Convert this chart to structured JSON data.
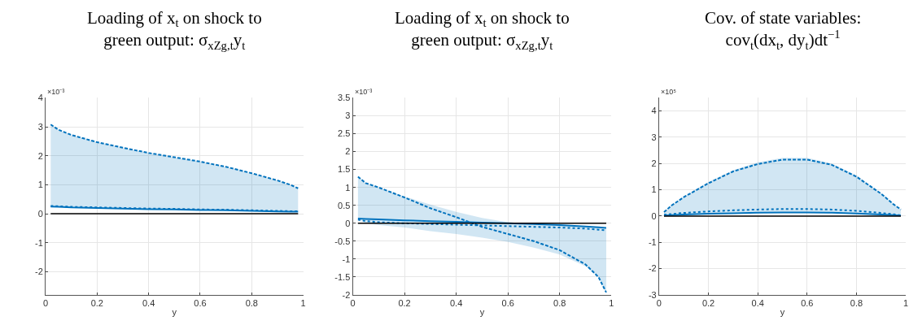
{
  "chart_data": [
    {
      "type": "line",
      "title": "Loading of x$_{t}$ on shock to green output: σ$_{xZg,t}$y$_{t}$",
      "xlabel": "y",
      "annotations": [
        "×10⁻³"
      ],
      "x": [
        0.02,
        0.05,
        0.1,
        0.2,
        0.3,
        0.4,
        0.5,
        0.6,
        0.7,
        0.8,
        0.9,
        0.95,
        0.98
      ],
      "series": [
        {
          "color": "#0072bd",
          "line_style": "dashed",
          "values": [
            3.08,
            2.9,
            2.72,
            2.47,
            2.28,
            2.1,
            1.95,
            1.8,
            1.62,
            1.4,
            1.15,
            1.0,
            0.88
          ],
          "lower": [
            0.25,
            0.24,
            0.22,
            0.2,
            0.18,
            0.16,
            0.15,
            0.13,
            0.12,
            0.1,
            0.08,
            0.07,
            0.07
          ],
          "upper": [
            3.08,
            2.9,
            2.72,
            2.47,
            2.28,
            2.1,
            1.95,
            1.8,
            1.62,
            1.4,
            1.15,
            1.0,
            0.88
          ]
        },
        {
          "color": "#0072bd",
          "line_style": "solid",
          "values": [
            0.25,
            0.24,
            0.22,
            0.2,
            0.18,
            0.16,
            0.15,
            0.13,
            0.12,
            0.1,
            0.08,
            0.07,
            0.07
          ]
        },
        {
          "color": "#0072bd",
          "line_style": "dotted",
          "values": [
            0.27,
            0.26,
            0.24,
            0.22,
            0.2,
            0.18,
            0.17,
            0.15,
            0.14,
            0.12,
            0.1,
            0.09,
            0.09
          ]
        }
      ],
      "xlim": [
        0,
        1
      ],
      "xticks": [
        0,
        0.2,
        0.4,
        0.6,
        0.8,
        1
      ],
      "ylim": [
        -2.8,
        4
      ],
      "yticks": [
        -2,
        -1,
        0,
        1,
        2,
        3,
        4
      ],
      "grid": true,
      "ref_lines": [
        {
          "axis": "y",
          "value": 0,
          "color": "#000000"
        }
      ]
    },
    {
      "type": "line",
      "title": "Loading of x$_{t}$ on shock to green output: σ$_{xZg,t}$y$_{t}$",
      "xlabel": "y",
      "annotations": [
        "×10⁻³"
      ],
      "x": [
        0.02,
        0.05,
        0.1,
        0.2,
        0.3,
        0.4,
        0.5,
        0.6,
        0.7,
        0.8,
        0.9,
        0.95,
        0.98
      ],
      "series": [
        {
          "color": "#0072bd",
          "line_style": "dashed",
          "values": [
            1.3,
            1.12,
            1.0,
            0.72,
            0.42,
            0.17,
            -0.1,
            -0.3,
            -0.5,
            -0.75,
            -1.15,
            -1.5,
            -1.93
          ],
          "lower": [
            0.13,
            0.0,
            -0.05,
            -0.12,
            -0.22,
            -0.3,
            -0.4,
            -0.52,
            -0.68,
            -0.87,
            -1.2,
            -1.5,
            -1.93
          ],
          "upper": [
            1.3,
            1.12,
            1.0,
            0.75,
            0.52,
            0.32,
            0.15,
            0.03,
            -0.02,
            -0.06,
            -0.1,
            -0.12,
            -0.13
          ]
        },
        {
          "color": "#0072bd",
          "line_style": "solid",
          "values": [
            0.13,
            0.12,
            0.11,
            0.08,
            0.06,
            0.04,
            0.02,
            0.0,
            -0.02,
            -0.05,
            -0.09,
            -0.11,
            -0.13
          ]
        },
        {
          "color": "#0072bd",
          "line_style": "dotted",
          "values": [
            0.1,
            0.06,
            0.03,
            0.0,
            -0.02,
            -0.04,
            -0.06,
            -0.08,
            -0.1,
            -0.12,
            -0.15,
            -0.18,
            -0.2
          ]
        }
      ],
      "xlim": [
        0,
        1
      ],
      "xticks": [
        0,
        0.2,
        0.4,
        0.6,
        0.8,
        1
      ],
      "ylim": [
        -2,
        3.5
      ],
      "yticks": [
        -2,
        -1.5,
        -1,
        -0.5,
        0,
        0.5,
        1,
        1.5,
        2,
        2.5,
        3,
        3.5
      ],
      "grid": true,
      "ref_lines": [
        {
          "axis": "y",
          "value": 0,
          "color": "#000000"
        }
      ]
    },
    {
      "type": "line",
      "title": "Cov. of state variables: cov$_{t}$(dx$_{t}$, dy$_{t}$)dt$^{−1}$",
      "xlabel": "y",
      "annotations": [
        "×10⁵"
      ],
      "x": [
        0.02,
        0.05,
        0.1,
        0.2,
        0.3,
        0.4,
        0.5,
        0.6,
        0.7,
        0.8,
        0.9,
        0.95,
        0.98
      ],
      "series": [
        {
          "color": "#0072bd",
          "line_style": "dashed",
          "values": [
            0.15,
            0.4,
            0.72,
            1.25,
            1.7,
            1.98,
            2.15,
            2.15,
            1.95,
            1.5,
            0.85,
            0.45,
            0.25
          ],
          "lower": [
            0.02,
            0.04,
            0.06,
            0.09,
            0.11,
            0.13,
            0.14,
            0.14,
            0.13,
            0.1,
            0.06,
            0.04,
            0.02
          ],
          "upper": [
            0.15,
            0.42,
            0.75,
            1.3,
            1.75,
            2.05,
            2.22,
            2.22,
            2.0,
            1.55,
            0.88,
            0.48,
            0.25
          ]
        },
        {
          "color": "#0072bd",
          "line_style": "solid",
          "values": [
            0.02,
            0.04,
            0.06,
            0.09,
            0.11,
            0.13,
            0.14,
            0.14,
            0.13,
            0.1,
            0.06,
            0.04,
            0.02
          ]
        },
        {
          "color": "#0072bd",
          "line_style": "dotted",
          "values": [
            0.05,
            0.08,
            0.12,
            0.18,
            0.22,
            0.25,
            0.27,
            0.27,
            0.25,
            0.2,
            0.12,
            0.07,
            0.03
          ]
        }
      ],
      "xlim": [
        0,
        1
      ],
      "xticks": [
        0,
        0.2,
        0.4,
        0.6,
        0.8,
        1
      ],
      "ylim": [
        -3,
        4.5
      ],
      "yticks": [
        -3,
        -2,
        -1,
        0,
        1,
        2,
        3,
        4
      ],
      "grid": true,
      "ref_lines": [
        {
          "axis": "y",
          "value": 0,
          "color": "#000000"
        }
      ]
    }
  ]
}
